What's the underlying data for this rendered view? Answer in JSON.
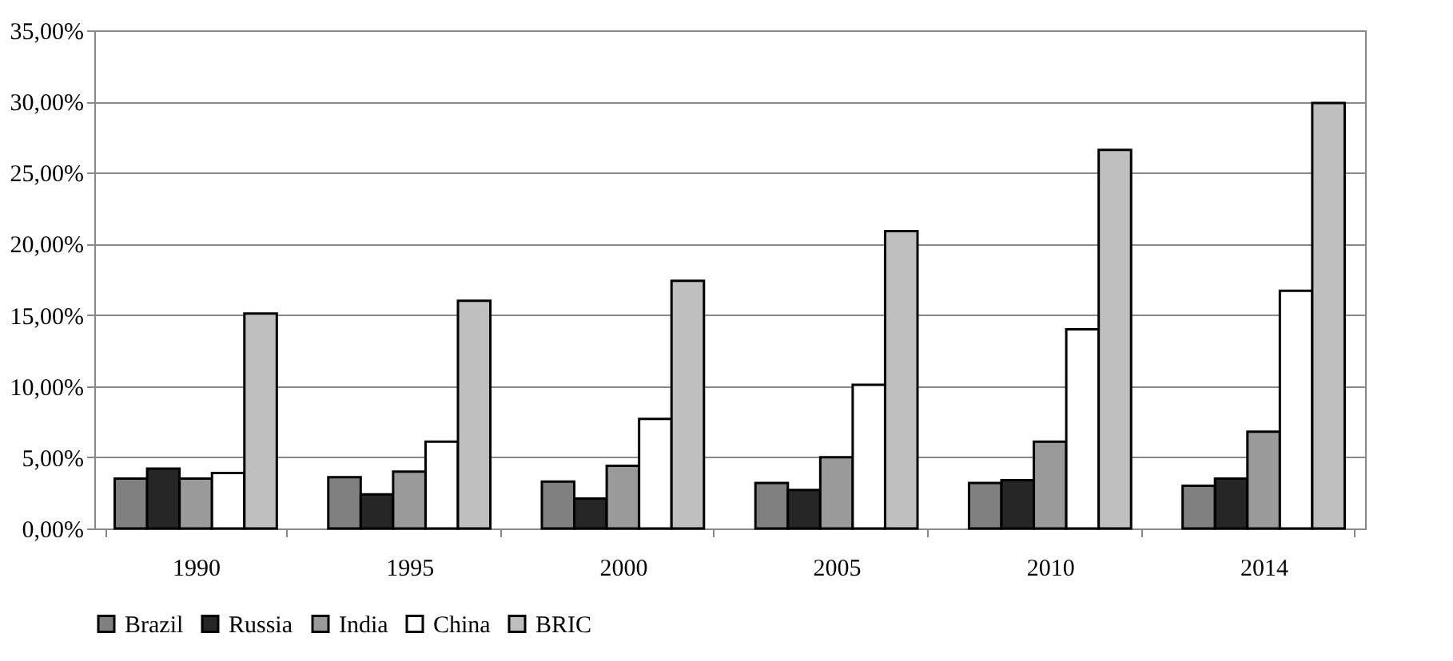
{
  "chart_data": {
    "type": "bar",
    "categories": [
      "1990",
      "1995",
      "2000",
      "2005",
      "2010",
      "2014"
    ],
    "series": [
      {
        "name": "Brazil",
        "color": "#808080",
        "values": [
          3.5,
          3.6,
          3.3,
          3.2,
          3.2,
          3.0
        ]
      },
      {
        "name": "Russia",
        "color": "#262626",
        "values": [
          4.2,
          2.4,
          2.1,
          2.7,
          3.4,
          3.5
        ]
      },
      {
        "name": "India",
        "color": "#9a9a9a",
        "values": [
          3.5,
          4.0,
          4.4,
          5.0,
          6.1,
          6.8
        ]
      },
      {
        "name": "China",
        "color": "#ffffff",
        "values": [
          3.9,
          6.1,
          7.7,
          10.1,
          14.0,
          16.7
        ]
      },
      {
        "name": "BRIC",
        "color": "#bfbfbf",
        "values": [
          15.1,
          16.0,
          17.4,
          20.9,
          26.6,
          29.9
        ]
      }
    ],
    "ylim": [
      0,
      35
    ],
    "yticks": [
      {
        "value": 0,
        "label": "0,00%"
      },
      {
        "value": 5,
        "label": "5,00%"
      },
      {
        "value": 10,
        "label": "10,00%"
      },
      {
        "value": 15,
        "label": "15,00%"
      },
      {
        "value": 20,
        "label": "20,00%"
      },
      {
        "value": 25,
        "label": "25,00%"
      },
      {
        "value": 30,
        "label": "30,00%"
      },
      {
        "value": 35,
        "label": "35,00%"
      }
    ],
    "grid": "y",
    "legend": "bottom"
  }
}
